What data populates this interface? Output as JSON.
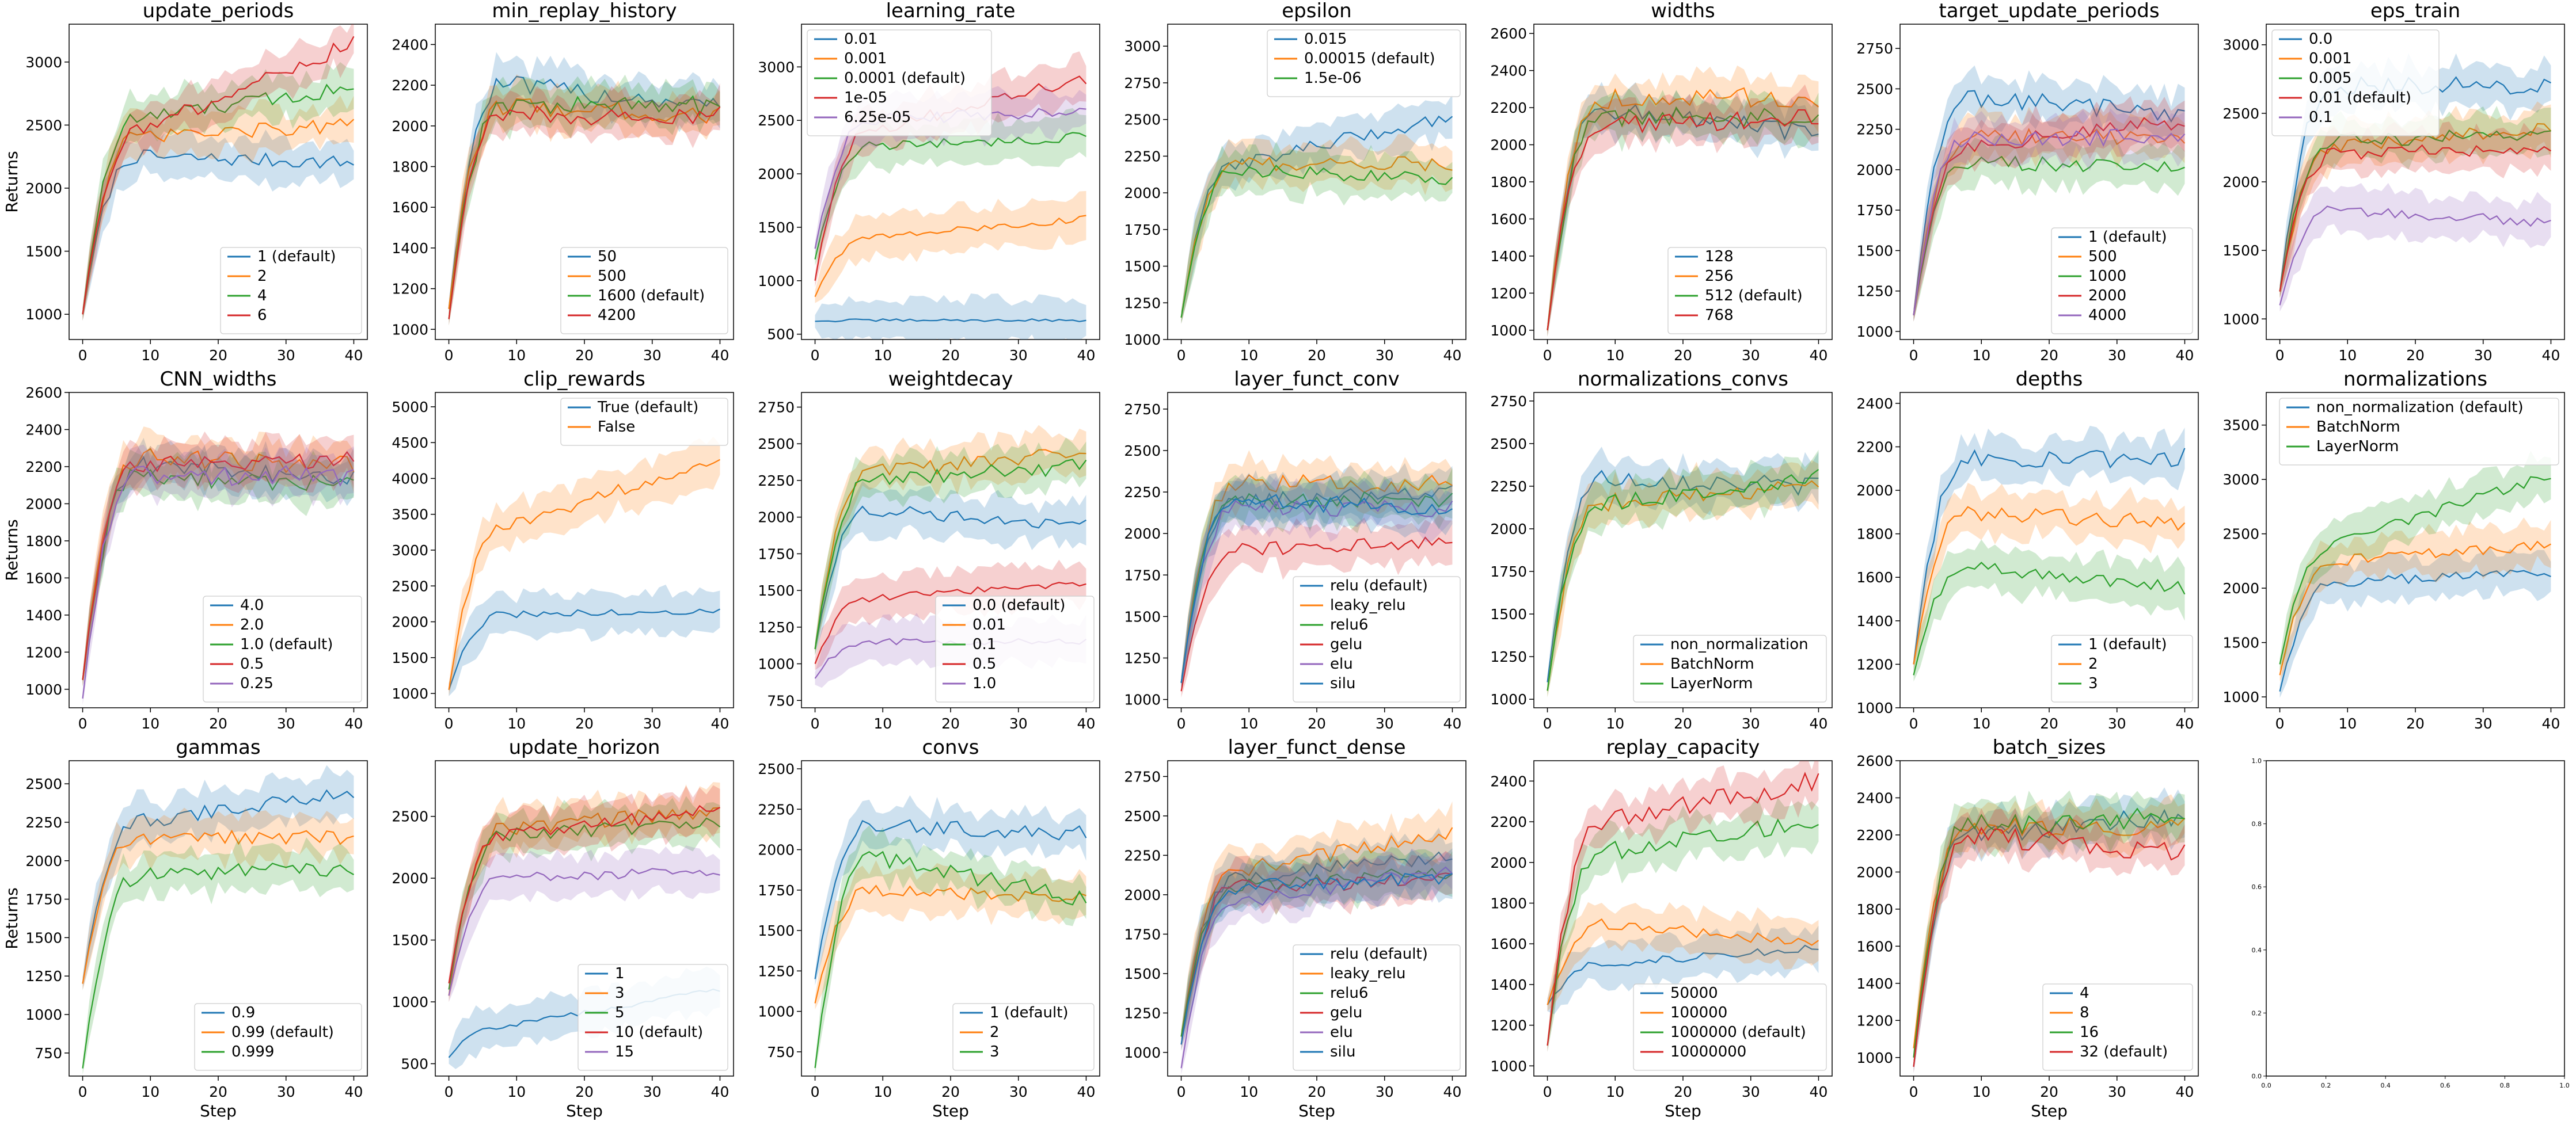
{
  "figure": {
    "ylabel": "Returns",
    "xlabel": "Step",
    "colors": [
      "#1f77b4",
      "#ff7f0e",
      "#2ca02c",
      "#d62728",
      "#9467bd"
    ]
  },
  "chart_data": [
    {
      "type": "line",
      "title": "update_periods",
      "ylim": [
        800,
        3300
      ],
      "yticks": [
        1000,
        1500,
        2000,
        2500,
        3000
      ],
      "xticks": [
        0,
        10,
        20,
        30,
        40
      ],
      "legend": "bottom-right",
      "series": [
        {
          "name": "1 (default)",
          "shape": [
            1000,
            2250,
            2200
          ]
        },
        {
          "name": "2",
          "shape": [
            1000,
            2400,
            2500
          ]
        },
        {
          "name": "4",
          "shape": [
            1000,
            2550,
            2800
          ]
        },
        {
          "name": "6",
          "shape": [
            1000,
            2450,
            3150
          ]
        }
      ]
    },
    {
      "type": "line",
      "title": "min_replay_history",
      "ylim": [
        950,
        2500
      ],
      "yticks": [
        1000,
        1200,
        1400,
        1600,
        1800,
        2000,
        2200,
        2400
      ],
      "xticks": [
        0,
        10,
        20,
        30,
        40
      ],
      "legend": "bottom-right",
      "series": [
        {
          "name": "50",
          "shape": [
            1100,
            2200,
            2100
          ]
        },
        {
          "name": "500",
          "shape": [
            1100,
            2100,
            2050
          ]
        },
        {
          "name": "1600 (default)",
          "shape": [
            1050,
            2100,
            2100
          ]
        },
        {
          "name": "4200",
          "shape": [
            1050,
            2050,
            2050
          ]
        }
      ]
    },
    {
      "type": "line",
      "title": "learning_rate",
      "ylim": [
        450,
        3400
      ],
      "yticks": [
        500,
        1000,
        1500,
        2000,
        2500,
        3000
      ],
      "xticks": [
        0,
        10,
        20,
        30,
        40
      ],
      "legend": "top-left",
      "series": [
        {
          "name": "0.01",
          "shape": [
            620,
            630,
            630
          ]
        },
        {
          "name": "0.001",
          "shape": [
            850,
            1400,
            1580
          ]
        },
        {
          "name": "0.0001 (default)",
          "shape": [
            1200,
            2250,
            2350
          ]
        },
        {
          "name": "1e-05",
          "shape": [
            1000,
            2400,
            2900
          ]
        },
        {
          "name": "6.25e-05",
          "shape": [
            1300,
            2500,
            2600
          ]
        }
      ]
    },
    {
      "type": "line",
      "title": "epsilon",
      "ylim": [
        1000,
        3150
      ],
      "yticks": [
        1000,
        1250,
        1500,
        1750,
        2000,
        2250,
        2500,
        2750,
        3000
      ],
      "xticks": [
        0,
        10,
        20,
        30,
        40
      ],
      "legend": "top-right",
      "series": [
        {
          "name": "0.015",
          "shape": [
            1150,
            2200,
            2520
          ]
        },
        {
          "name": "0.00015 (default)",
          "shape": [
            1150,
            2200,
            2200
          ]
        },
        {
          "name": "1.5e-06",
          "shape": [
            1150,
            2150,
            2100
          ]
        }
      ]
    },
    {
      "type": "line",
      "title": "widths",
      "ylim": [
        950,
        2650
      ],
      "yticks": [
        1000,
        1200,
        1400,
        1600,
        1800,
        2000,
        2200,
        2400,
        2600
      ],
      "xticks": [
        0,
        10,
        20,
        30,
        40
      ],
      "legend": "bottom-right",
      "series": [
        {
          "name": "128",
          "shape": [
            1000,
            2200,
            2050
          ]
        },
        {
          "name": "256",
          "shape": [
            1000,
            2250,
            2250
          ]
        },
        {
          "name": "512 (default)",
          "shape": [
            1000,
            2150,
            2150
          ]
        },
        {
          "name": "768",
          "shape": [
            1000,
            2100,
            2150
          ]
        }
      ]
    },
    {
      "type": "line",
      "title": "target_update_periods",
      "ylim": [
        950,
        2900
      ],
      "yticks": [
        1000,
        1250,
        1500,
        1750,
        2000,
        2250,
        2500,
        2750
      ],
      "xticks": [
        0,
        10,
        20,
        30,
        40
      ],
      "legend": "bottom-right",
      "series": [
        {
          "name": "1 (default)",
          "shape": [
            1100,
            2450,
            2350
          ]
        },
        {
          "name": "500",
          "shape": [
            1100,
            2200,
            2200
          ]
        },
        {
          "name": "1000",
          "shape": [
            1100,
            2050,
            2000
          ]
        },
        {
          "name": "2000",
          "shape": [
            1100,
            2150,
            2300
          ]
        },
        {
          "name": "4000",
          "shape": [
            1100,
            2200,
            2200
          ]
        }
      ]
    },
    {
      "type": "line",
      "title": "eps_train",
      "ylim": [
        850,
        3150
      ],
      "yticks": [
        1000,
        1500,
        2000,
        2500,
        3000
      ],
      "xticks": [
        0,
        10,
        20,
        30,
        40
      ],
      "legend": "top-left",
      "series": [
        {
          "name": "0.0",
          "shape": [
            1200,
            2700,
            2700
          ]
        },
        {
          "name": "0.001",
          "shape": [
            1200,
            2250,
            2400
          ]
        },
        {
          "name": "0.005",
          "shape": [
            1200,
            2300,
            2350
          ]
        },
        {
          "name": "0.01 (default)",
          "shape": [
            1200,
            2200,
            2250
          ]
        },
        {
          "name": "0.1",
          "shape": [
            1100,
            1800,
            1700
          ]
        }
      ]
    },
    {
      "type": "line",
      "title": "CNN_widths",
      "ylim": [
        900,
        2600
      ],
      "yticks": [
        1000,
        1200,
        1400,
        1600,
        1800,
        2000,
        2200,
        2400,
        2600
      ],
      "xticks": [
        0,
        10,
        20,
        30,
        40
      ],
      "legend": "bottom-right",
      "series": [
        {
          "name": "4.0",
          "shape": [
            1050,
            2200,
            2150
          ]
        },
        {
          "name": "2.0",
          "shape": [
            1050,
            2250,
            2200
          ]
        },
        {
          "name": "1.0 (default)",
          "shape": [
            1050,
            2150,
            2100
          ]
        },
        {
          "name": "0.5",
          "shape": [
            1050,
            2200,
            2250
          ]
        },
        {
          "name": "0.25",
          "shape": [
            950,
            2150,
            2150
          ]
        }
      ]
    },
    {
      "type": "line",
      "title": "clip_rewards",
      "ylim": [
        800,
        5200
      ],
      "yticks": [
        1000,
        1500,
        2000,
        2500,
        3000,
        3500,
        4000,
        4500,
        5000
      ],
      "xticks": [
        0,
        10,
        20,
        30,
        40
      ],
      "legend": "top-right",
      "series": [
        {
          "name": "True (default)",
          "shape": [
            1050,
            2100,
            2150
          ]
        },
        {
          "name": "False",
          "shape": [
            1050,
            3300,
            4300
          ]
        }
      ]
    },
    {
      "type": "line",
      "title": "weightdecay",
      "ylim": [
        700,
        2850
      ],
      "yticks": [
        750,
        1000,
        1250,
        1500,
        1750,
        2000,
        2250,
        2500,
        2750
      ],
      "xticks": [
        0,
        10,
        20,
        30,
        40
      ],
      "legend": "bottom-right",
      "series": [
        {
          "name": "0.0 (default)",
          "shape": [
            1100,
            2050,
            1950
          ]
        },
        {
          "name": "0.01",
          "shape": [
            1100,
            2300,
            2450
          ]
        },
        {
          "name": "0.1",
          "shape": [
            1100,
            2250,
            2350
          ]
        },
        {
          "name": "0.5",
          "shape": [
            1000,
            1450,
            1550
          ]
        },
        {
          "name": "1.0",
          "shape": [
            900,
            1150,
            1150
          ]
        }
      ]
    },
    {
      "type": "line",
      "title": "layer_funct_conv",
      "ylim": [
        950,
        2850
      ],
      "yticks": [
        1000,
        1250,
        1500,
        1750,
        2000,
        2250,
        2500,
        2750
      ],
      "xticks": [
        0,
        10,
        20,
        30,
        40
      ],
      "legend": "bottom-right",
      "series": [
        {
          "name": "relu (default)",
          "shape": [
            1100,
            2200,
            2250
          ]
        },
        {
          "name": "leaky_relu",
          "shape": [
            1100,
            2300,
            2300
          ]
        },
        {
          "name": "relu6",
          "shape": [
            1100,
            2200,
            2200
          ]
        },
        {
          "name": "gelu",
          "shape": [
            1050,
            1900,
            1950
          ]
        },
        {
          "name": "elu",
          "shape": [
            1100,
            2150,
            2150
          ]
        },
        {
          "name": "silu",
          "shape": [
            1100,
            2200,
            2150
          ]
        }
      ]
    },
    {
      "type": "line",
      "title": "normalizations_convs",
      "ylim": [
        950,
        2800
      ],
      "yticks": [
        1000,
        1250,
        1500,
        1750,
        2000,
        2250,
        2500,
        2750
      ],
      "xticks": [
        0,
        10,
        20,
        30,
        40
      ],
      "legend": "bottom-right",
      "series": [
        {
          "name": "non_normalization",
          "shape": [
            1100,
            2300,
            2250
          ]
        },
        {
          "name": "BatchNorm",
          "shape": [
            1050,
            2150,
            2250
          ]
        },
        {
          "name": "LayerNorm",
          "shape": [
            1050,
            2150,
            2300
          ]
        }
      ]
    },
    {
      "type": "line",
      "title": "depths",
      "ylim": [
        1000,
        2450
      ],
      "yticks": [
        1000,
        1200,
        1400,
        1600,
        1800,
        2000,
        2200,
        2400
      ],
      "xticks": [
        0,
        10,
        20,
        30,
        40
      ],
      "legend": "bottom-right",
      "series": [
        {
          "name": "1 (default)",
          "shape": [
            1200,
            2150,
            2150
          ]
        },
        {
          "name": "2",
          "shape": [
            1200,
            1900,
            1850
          ]
        },
        {
          "name": "3",
          "shape": [
            1150,
            1650,
            1550
          ]
        }
      ]
    },
    {
      "type": "line",
      "title": "normalizations",
      "ylim": [
        900,
        3800
      ],
      "yticks": [
        1000,
        1500,
        2000,
        2500,
        3000,
        3500
      ],
      "xticks": [
        0,
        10,
        20,
        30,
        40
      ],
      "legend": "top-right",
      "series": [
        {
          "name": "non_normalization (default)",
          "shape": [
            1050,
            2050,
            2150
          ]
        },
        {
          "name": "BatchNorm",
          "shape": [
            1200,
            2250,
            2400
          ]
        },
        {
          "name": "LayerNorm",
          "shape": [
            1300,
            2400,
            3050
          ]
        }
      ]
    },
    {
      "type": "line",
      "title": "gammas",
      "ylim": [
        600,
        2650
      ],
      "yticks": [
        750,
        1000,
        1250,
        1500,
        1750,
        2000,
        2250,
        2500
      ],
      "xticks": [
        0,
        10,
        20,
        30,
        40
      ],
      "legend": "bottom-right",
      "series": [
        {
          "name": "0.9",
          "shape": [
            1200,
            2250,
            2450
          ]
        },
        {
          "name": "0.99 (default)",
          "shape": [
            1200,
            2150,
            2150
          ]
        },
        {
          "name": "0.999",
          "shape": [
            650,
            1900,
            1950
          ]
        }
      ]
    },
    {
      "type": "line",
      "title": "update_horizon",
      "ylim": [
        400,
        2950
      ],
      "yticks": [
        500,
        1000,
        1500,
        2000,
        2500
      ],
      "xticks": [
        0,
        10,
        20,
        30,
        40
      ],
      "legend": "bottom-right",
      "series": [
        {
          "name": "1",
          "shape": [
            550,
            800,
            1100
          ]
        },
        {
          "name": "3",
          "shape": [
            1050,
            2400,
            2550
          ]
        },
        {
          "name": "5",
          "shape": [
            1100,
            2350,
            2450
          ]
        },
        {
          "name": "10 (default)",
          "shape": [
            1150,
            2350,
            2550
          ]
        },
        {
          "name": "15",
          "shape": [
            1050,
            2000,
            2050
          ]
        }
      ]
    },
    {
      "type": "line",
      "title": "convs",
      "ylim": [
        600,
        2550
      ],
      "yticks": [
        750,
        1000,
        1250,
        1500,
        1750,
        2000,
        2250,
        2500
      ],
      "xticks": [
        0,
        10,
        20,
        30,
        40
      ],
      "legend": "bottom-right",
      "series": [
        {
          "name": "1 (default)",
          "shape": [
            1200,
            2150,
            2100
          ]
        },
        {
          "name": "2",
          "shape": [
            1050,
            1750,
            1700
          ]
        },
        {
          "name": "3",
          "shape": [
            650,
            1950,
            1700
          ]
        }
      ]
    },
    {
      "type": "line",
      "title": "layer_funct_dense",
      "ylim": [
        850,
        2850
      ],
      "yticks": [
        1000,
        1250,
        1500,
        1750,
        2000,
        2250,
        2500,
        2750
      ],
      "xticks": [
        0,
        10,
        20,
        30,
        40
      ],
      "legend": "bottom-right",
      "series": [
        {
          "name": "relu (default)",
          "shape": [
            1100,
            2100,
            2250
          ]
        },
        {
          "name": "leaky_relu",
          "shape": [
            1100,
            2150,
            2400
          ]
        },
        {
          "name": "relu6",
          "shape": [
            1100,
            2050,
            2150
          ]
        },
        {
          "name": "gelu",
          "shape": [
            1050,
            2050,
            2100
          ]
        },
        {
          "name": "elu",
          "shape": [
            900,
            1950,
            2150
          ]
        },
        {
          "name": "silu",
          "shape": [
            1050,
            2050,
            2100
          ]
        }
      ]
    },
    {
      "type": "line",
      "title": "replay_capacity",
      "ylim": [
        950,
        2500
      ],
      "yticks": [
        1000,
        1200,
        1400,
        1600,
        1800,
        2000,
        2200,
        2400
      ],
      "xticks": [
        0,
        10,
        20,
        30,
        40
      ],
      "legend": "bottom-right",
      "series": [
        {
          "name": "50000",
          "shape": [
            1300,
            1500,
            1580
          ]
        },
        {
          "name": "100000",
          "shape": [
            1300,
            1700,
            1600
          ]
        },
        {
          "name": "1000000 (default)",
          "shape": [
            1100,
            2050,
            2200
          ]
        },
        {
          "name": "10000000",
          "shape": [
            1100,
            2200,
            2400
          ]
        }
      ]
    },
    {
      "type": "line",
      "title": "batch_sizes",
      "ylim": [
        900,
        2600
      ],
      "yticks": [
        1000,
        1200,
        1400,
        1600,
        1800,
        2000,
        2200,
        2400,
        2600
      ],
      "xticks": [
        0,
        10,
        20,
        30,
        40
      ],
      "legend": "bottom-right",
      "series": [
        {
          "name": "4",
          "shape": [
            950,
            2200,
            2300
          ]
        },
        {
          "name": "8",
          "shape": [
            1050,
            2250,
            2250
          ]
        },
        {
          "name": "16",
          "shape": [
            1000,
            2250,
            2300
          ]
        },
        {
          "name": "32 (default)",
          "shape": [
            950,
            2200,
            2100
          ]
        }
      ]
    },
    {
      "type": "line",
      "title": "",
      "ylim": [
        0,
        1
      ],
      "yticks": [
        "0.0",
        "0.2",
        "0.4",
        "0.6",
        "0.8",
        "1.0"
      ],
      "xticks": [
        "0.0",
        "0.2",
        "0.4",
        "0.6",
        "0.8",
        "1.0"
      ],
      "empty": true,
      "series": []
    }
  ]
}
